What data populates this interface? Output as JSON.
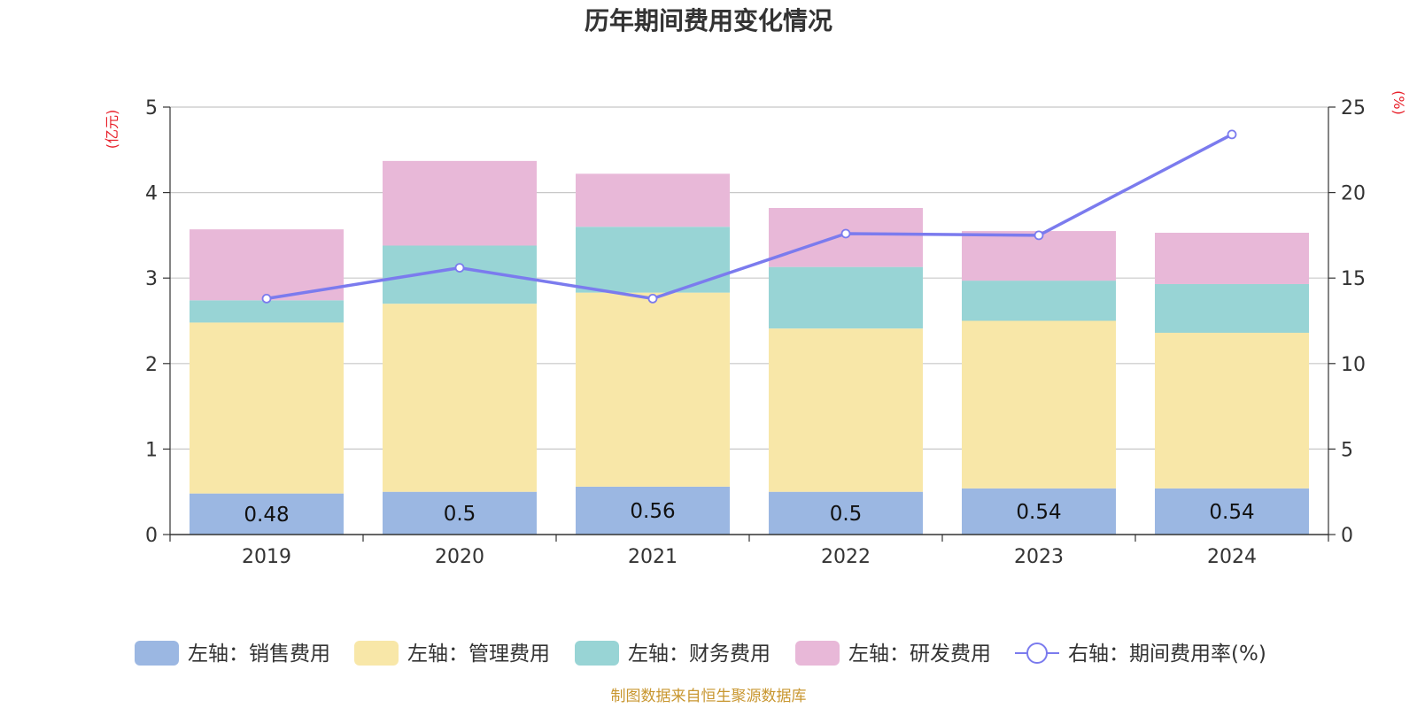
{
  "chart_data": {
    "type": "bar",
    "title": "历年期间费用变化情况",
    "categories": [
      "2019",
      "2020",
      "2021",
      "2022",
      "2023",
      "2024"
    ],
    "left_axis": {
      "unit": "(亿元)",
      "ylim": [
        0,
        5
      ],
      "ticks": [
        "0",
        "1",
        "2",
        "3",
        "4",
        "5"
      ]
    },
    "right_axis": {
      "unit": "(%)",
      "ylim": [
        0,
        25
      ],
      "ticks": [
        "0",
        "5",
        "10",
        "15",
        "20",
        "25"
      ]
    },
    "series": [
      {
        "name": "左轴：销售费用",
        "type": "bar",
        "axis": "left",
        "color": "#9bb7e2",
        "values": [
          0.48,
          0.5,
          0.56,
          0.5,
          0.54,
          0.54
        ],
        "labels": [
          "0.48",
          "0.5",
          "0.56",
          "0.5",
          "0.54",
          "0.54"
        ]
      },
      {
        "name": "左轴：管理费用",
        "type": "bar",
        "axis": "left",
        "color": "#f8e7a8",
        "values": [
          2.0,
          2.2,
          2.27,
          1.91,
          1.96,
          1.82
        ]
      },
      {
        "name": "左轴：财务费用",
        "type": "bar",
        "axis": "left",
        "color": "#98d4d5",
        "values": [
          0.26,
          0.68,
          0.77,
          0.72,
          0.47,
          0.57
        ]
      },
      {
        "name": "左轴：研发费用",
        "type": "bar",
        "axis": "left",
        "color": "#e8b8d8",
        "values": [
          0.83,
          0.99,
          0.62,
          0.69,
          0.58,
          0.6
        ]
      },
      {
        "name": "右轴：期间费用率(%)",
        "type": "line",
        "axis": "right",
        "color": "#7b7bee",
        "values": [
          13.8,
          15.6,
          13.8,
          17.6,
          17.5,
          23.4
        ]
      }
    ],
    "grid": true,
    "legend_position": "bottom",
    "source": "制图数据来自恒生聚源数据库"
  }
}
